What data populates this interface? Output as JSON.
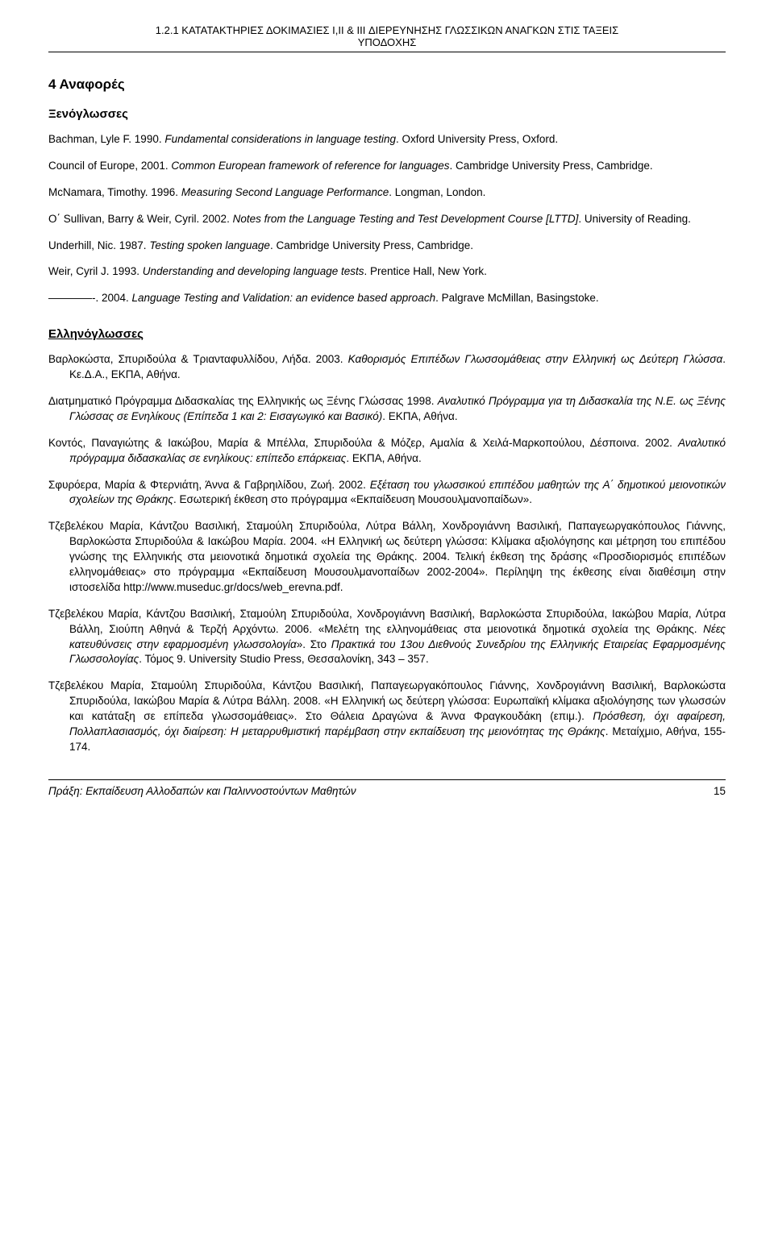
{
  "header": {
    "line1": "1.2.1 ΚΑΤΑΤΑΚΤΗΡΙΕΣ ΔΟΚΙΜΑΣΙΕΣ I,II & III ΔΙΕΡΕΥΝΗΣΗΣ ΓΛΩΣΣΙΚΩΝ ΑΝΑΓΚΩΝ ΣΤΙΣ ΤΑΞΕΙΣ",
    "line2": "ΥΠΟΔΟΧΗΣ"
  },
  "section_title": "4   Αναφορές",
  "subsection_foreign": "Ξενόγλωσσες",
  "refs_foreign": [
    {
      "pre": "Bachman, Lyle F. 1990. ",
      "italic": "Fundamental considerations in language testing",
      "post": ". Oxford University Press, Oxford."
    },
    {
      "pre": "Council of Europe, 2001. ",
      "italic": "Common European framework of reference for languages",
      "post": ". Cambridge University Press, Cambridge."
    },
    {
      "pre": "McNamara, Timothy. 1996. ",
      "italic": "Measuring Second Language Performance",
      "post": ". Longman, London."
    },
    {
      "pre": "O΄ Sullivan, Barry & Weir, Cyril. 2002. ",
      "italic": "Notes from the Language Testing and Test Development Course [LTTD]",
      "post": ". University of Reading."
    },
    {
      "pre": "Underhill, Nic. 1987. ",
      "italic": "Testing spoken language",
      "post": ". Cambridge University Press, Cambridge."
    },
    {
      "pre": "Weir, Cyril J. 1993. ",
      "italic": "Understanding and developing language tests",
      "post": ". Prentice Hall, New York."
    },
    {
      "pre": "————-. 2004. ",
      "italic": "Language Testing and Validation: an evidence based approach",
      "post": ". Palgrave McMillan, Basingstoke."
    }
  ],
  "subsection_greek": "Ελληνόγλωσσες",
  "refs_greek": [
    "Βαρλοκώστα, Σπυριδούλα & Τριανταφυλλίδου, Λήδα. 2003. <i>Καθορισμός Επιπέδων Γλωσσομάθειας στην Ελληνική ως Δεύτερη Γλώσσα</i>. Κε.Δ.Α., ΕΚΠΑ, Αθήνα.",
    "Διατμηματικό Πρόγραμμα Διδασκαλίας της Ελληνικής ως Ξένης Γλώσσας 1998. <i>Αναλυτικό Πρόγραμμα για τη Διδασκαλία της Ν.Ε. ως Ξένης Γλώσσας σε Ενηλίκους (Επίπεδα 1 και 2: Εισαγωγικό και Βασικό)</i>. ΕΚΠΑ, Αθήνα.",
    "Κοντός, Παναγιώτης & Ιακώβου, Μαρία & Μπέλλα, Σπυριδούλα & Μόζερ, Αμαλία & Χειλά-Μαρκοπούλου, Δέσποινα. 2002. <i>Αναλυτικό πρόγραμμα διδασκαλίας σε ενηλίκους: επίπεδο επάρκειας</i>. ΕΚΠΑ, Αθήνα.",
    "Σφυρόερα, Μαρία & Φτερνιάτη, Άννα & Γαβρηιλίδου, Ζωή. 2002. <i>Εξέταση του γλωσσικού επιπέδου μαθητών της Α΄ δημοτικού μειονοτικών σχολείων της Θράκης</i>. Εσωτερική έκθεση στο πρόγραμμα «Εκπαίδευση Μουσουλμανοπαίδων».",
    "Τζεβελέκου Μαρία, Κάντζου Βασιλική, Σταμούλη Σπυριδούλα, Λύτρα Βάλλη, Χονδρογιάννη Βασιλική, Παπαγεωργακόπουλος Γιάννης, Βαρλοκώστα Σπυριδούλα & Ιακώβου Μαρία. 2004. «Η Ελληνική ως δεύτερη γλώσσα: Κλίμακα αξιολόγησης και μέτρηση του επιπέδου γνώσης της Ελληνικής στα μειονοτικά δημοτικά σχολεία της Θράκης. 2004. Τελική έκθεση της δράσης «Προσδιορισμός επιπέδων ελληνομάθειας» στο πρόγραμμα «Εκπαίδευση Μουσουλμανοπαίδων 2002-2004». Περίληψη της έκθεσης είναι διαθέσιμη στην ιστοσελίδα http://www.museduc.gr/docs/web_erevna.pdf.",
    "Τζεβελέκου Μαρία, Κάντζου Βασιλική, Σταμούλη Σπυριδούλα, Χονδρογιάννη Βασιλική, Βαρλοκώστα Σπυριδούλα, Ιακώβου Μαρία, Λύτρα Βάλλη, Σιούπη Αθηνά & Τερζή Αρχόντω. 2006. «Μελέτη της ελληνομάθειας στα μειονοτικά δημοτικά σχολεία της Θράκης. <i>Νέες κατευθύνσεις στην εφαρμοσμένη γλωσσολογία</i>». Στο <i>Πρακτικά του 13ου Διεθνούς Συνεδρίου της Ελληνικής Εταιρείας Εφαρμοσμένης Γλωσσολογίας</i>. Τόμος 9. University Studio Press, Θεσσαλονίκη, 343 – 357.",
    "Τζεβελέκου Μαρία, Σταμούλη Σπυριδούλα, Κάντζου Βασιλική, Παπαγεωργακόπουλος Γιάννης, Χονδρογιάννη Βασιλική, Βαρλοκώστα Σπυριδούλα, Ιακώβου Μαρία & Λύτρα Βάλλη. 2008. «Η Ελληνική ως δεύτερη γλώσσα: Ευρωπαϊκή κλίμακα αξιολόγησης των γλωσσών και κατάταξη σε επίπεδα γλωσσομάθειας». Στο Θάλεια Δραγώνα & Άννα Φραγκουδάκη (επιμ.). <i>Πρόσθεση, όχι αφαίρεση, Πολλαπλασιασμός, όχι διαίρεση: Η μεταρρυθμιστική παρέμβαση στην εκπαίδευση της μειονότητας της Θράκης</i>. Μεταίχμιο, Αθήνα, 155-174."
  ],
  "footer": {
    "text": "Πράξη: Εκπαίδευση Αλλοδαπών και Παλιννοστούντων Μαθητών",
    "page": "15"
  },
  "colors": {
    "text": "#000000",
    "background": "#ffffff",
    "border": "#000000"
  },
  "typography": {
    "font_family": "Arial",
    "body_fontsize": 13.5,
    "header_fontsize": 13,
    "section_title_fontsize": 17,
    "subsection_fontsize": 15
  }
}
